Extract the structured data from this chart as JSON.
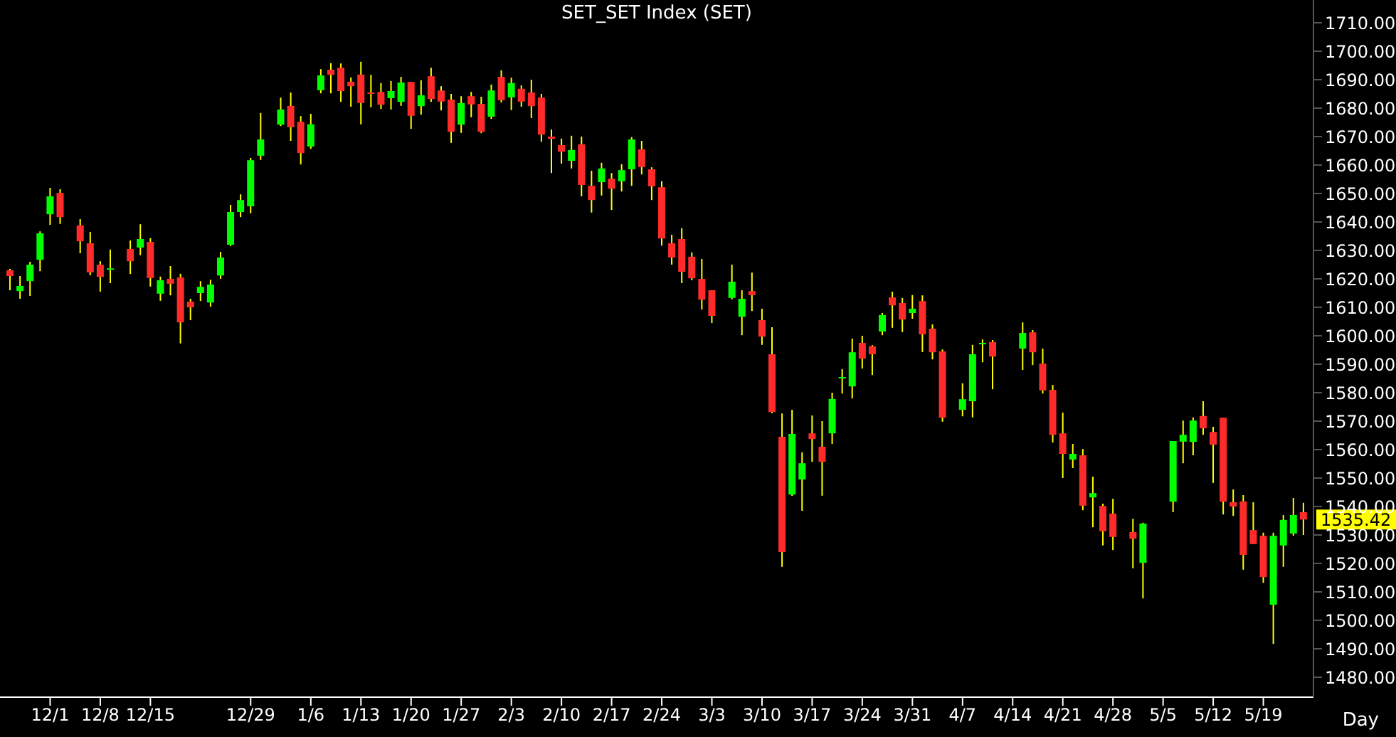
{
  "chart_data": {
    "type": "candlestick",
    "title": "SET_SET Index (SET)",
    "xlabel": "Day",
    "categories": [
      null,
      null,
      null,
      null,
      "12/1",
      null,
      null,
      null,
      null,
      "12/8",
      null,
      null,
      null,
      null,
      "12/15",
      null,
      null,
      null,
      null,
      null,
      null,
      null,
      null,
      null,
      "12/29",
      null,
      null,
      null,
      null,
      null,
      "1/6",
      null,
      null,
      null,
      null,
      "1/13",
      null,
      null,
      null,
      null,
      "1/20",
      null,
      null,
      null,
      null,
      "1/27",
      null,
      null,
      null,
      null,
      "2/3",
      null,
      null,
      null,
      null,
      "2/10",
      null,
      null,
      null,
      null,
      "2/17",
      null,
      null,
      null,
      null,
      "2/24",
      null,
      null,
      null,
      null,
      "3/3",
      null,
      null,
      null,
      null,
      "3/10",
      null,
      null,
      null,
      null,
      "3/17",
      null,
      null,
      null,
      null,
      "3/24",
      null,
      null,
      null,
      null,
      "3/31",
      null,
      null,
      null,
      null,
      "4/7",
      null,
      null,
      null,
      null,
      "4/14",
      null,
      null,
      null,
      null,
      "4/21",
      null,
      null,
      null,
      null,
      "4/28",
      null,
      null,
      null,
      null,
      "5/5",
      null,
      null,
      null,
      null,
      "5/12",
      null,
      null,
      null,
      null,
      "5/19",
      null,
      null,
      null,
      null
    ],
    "ohlc": [
      [
        1623,
        1623.5,
        1616,
        1621
      ],
      [
        1615.7,
        1621,
        1613,
        1617.5
      ],
      [
        1619.2,
        1626,
        1614,
        1625
      ],
      [
        1626.7,
        1636.7,
        1622.7,
        1636
      ],
      [
        1642.7,
        1652,
        1639,
        1649
      ],
      [
        1650.2,
        1651.5,
        1639.3,
        1641.7
      ],
      null,
      [
        1638.8,
        1641,
        1629,
        1633.2
      ],
      [
        1632.5,
        1636.5,
        1621.3,
        1622.3
      ],
      [
        1625,
        1626.2,
        1615.5,
        1620.7
      ],
      [
        1623.3,
        1630.3,
        1618.5,
        1623.7
      ],
      null,
      [
        1630.5,
        1633.5,
        1621.7,
        1626.2
      ],
      [
        1631,
        1639.2,
        1628.3,
        1634
      ],
      [
        1633,
        1634.3,
        1617.3,
        1620.3
      ],
      [
        1614.8,
        1620.8,
        1612.3,
        1619.5
      ],
      [
        1620,
        1624.5,
        1614.2,
        1618.3
      ],
      [
        1620.5,
        1621.8,
        1597.3,
        1604.7
      ],
      [
        1612,
        1613,
        1605.5,
        1610
      ],
      [
        1615,
        1619.2,
        1612.2,
        1617.2
      ],
      [
        1611.7,
        1619.7,
        1610.2,
        1618
      ],
      [
        1621.2,
        1629.5,
        1620,
        1627.5
      ],
      [
        1632,
        1646,
        1631.5,
        1643.5
      ],
      [
        1643.5,
        1649.7,
        1641.7,
        1647.7
      ],
      [
        1645.5,
        1662.5,
        1643,
        1661.7
      ],
      [
        1663.3,
        1678.3,
        1661.8,
        1669
      ],
      null,
      [
        1674.2,
        1683.7,
        1673.7,
        1679.5
      ],
      [
        1680.8,
        1685.5,
        1668.5,
        1673.3
      ],
      [
        1675.2,
        1677.2,
        1660.2,
        1664.2
      ],
      [
        1666.5,
        1678,
        1665.7,
        1674.3
      ],
      [
        1686.3,
        1693.7,
        1685.2,
        1691.5
      ],
      [
        1693.5,
        1695.8,
        1685.2,
        1691.7
      ],
      [
        1694.2,
        1695.7,
        1682.2,
        1686
      ],
      [
        1689.3,
        1690.8,
        1680.5,
        1687.7
      ],
      [
        1691.8,
        1696.3,
        1674.3,
        1681.8
      ],
      [
        1685.5,
        1691.7,
        1680.3,
        1685.2
      ],
      [
        1685.7,
        1688.8,
        1679.7,
        1681.2
      ],
      [
        1683.5,
        1689.5,
        1679.5,
        1686
      ],
      [
        1682.2,
        1691,
        1680.8,
        1689
      ],
      [
        1689.2,
        1689.2,
        1672.7,
        1677.3
      ],
      [
        1680.7,
        1689.8,
        1677.7,
        1684.5
      ],
      [
        1691.2,
        1694.2,
        1682.2,
        1683.2
      ],
      [
        1686.2,
        1687.7,
        1679.2,
        1682.3
      ],
      [
        1683,
        1685,
        1667.8,
        1671.7
      ],
      [
        1674.2,
        1684.2,
        1671.3,
        1681.8
      ],
      [
        1684.2,
        1685.7,
        1676.8,
        1681.3
      ],
      [
        1681.5,
        1684,
        1671.2,
        1671.7
      ],
      [
        1677,
        1688.3,
        1676.2,
        1686.2
      ],
      [
        1691,
        1693.3,
        1682,
        1682.8
      ],
      [
        1683.8,
        1690.7,
        1679.3,
        1688.8
      ],
      [
        1686.8,
        1688,
        1680.5,
        1682.3
      ],
      [
        1685.5,
        1690,
        1676.5,
        1680.7
      ],
      [
        1683.7,
        1685,
        1668.2,
        1670.7
      ],
      [
        1670,
        1672.5,
        1657.2,
        1669.2
      ],
      [
        1667,
        1669.3,
        1660.5,
        1664.7
      ],
      [
        1661.5,
        1670.3,
        1658.8,
        1665.3
      ],
      [
        1667.3,
        1670,
        1649,
        1653
      ],
      [
        1652.7,
        1658,
        1643.3,
        1647.7
      ],
      [
        1654,
        1660.8,
        1649.3,
        1658.8
      ],
      [
        1655.2,
        1657.2,
        1644.2,
        1651.7
      ],
      [
        1654.3,
        1660.3,
        1650.7,
        1658.2
      ],
      [
        1658.5,
        1669.8,
        1652.7,
        1669
      ],
      [
        1665.5,
        1668.5,
        1656.7,
        1659.3
      ],
      [
        1658.5,
        1659.2,
        1647.7,
        1652.5
      ],
      [
        1652.2,
        1654.3,
        1631.7,
        1634.2
      ],
      [
        1632.5,
        1635.5,
        1625,
        1627.5
      ],
      [
        1634,
        1637.8,
        1618.5,
        1622.5
      ],
      [
        1627.8,
        1629.3,
        1619.5,
        1620.2
      ],
      [
        1620,
        1627,
        1609.2,
        1612.7
      ],
      [
        1616,
        1616,
        1604.5,
        1607
      ],
      null,
      [
        1613.3,
        1625,
        1612.8,
        1619
      ],
      [
        1606.7,
        1616,
        1600.2,
        1613
      ],
      [
        1615.7,
        1622.2,
        1608.7,
        1614.3
      ],
      [
        1605.5,
        1609.5,
        1596.8,
        1599.7
      ],
      [
        1593.5,
        1603,
        1572.8,
        1573.2
      ],
      [
        1564.5,
        1572.7,
        1518.8,
        1524
      ],
      [
        1544.2,
        1574,
        1543.7,
        1565.5
      ],
      [
        1549.5,
        1559,
        1538.5,
        1555.2
      ],
      [
        1565.7,
        1572,
        1555.7,
        1563.7
      ],
      [
        1561,
        1570,
        1543.8,
        1555.7
      ],
      [
        1565.7,
        1580,
        1562,
        1577.8
      ],
      [
        1585.2,
        1588.3,
        1579.7,
        1585.5
      ],
      [
        1582.2,
        1599,
        1578,
        1594.2
      ],
      [
        1597.5,
        1600,
        1588.5,
        1592
      ],
      [
        1596.3,
        1596.7,
        1586.2,
        1593.5
      ],
      [
        1601.5,
        1608,
        1600.2,
        1607.3
      ],
      [
        1613.5,
        1615.5,
        1602.8,
        1610.7
      ],
      [
        1611.5,
        1613.3,
        1601.3,
        1605.7
      ],
      [
        1608,
        1614.3,
        1606,
        1609.5
      ],
      [
        1612.2,
        1614.2,
        1594.3,
        1600.5
      ],
      [
        1602.5,
        1604,
        1591.7,
        1594.2
      ],
      [
        1594.5,
        1595.2,
        1569.8,
        1571.2
      ],
      null,
      [
        1574,
        1583.3,
        1571.7,
        1577.7
      ],
      [
        1577,
        1596.8,
        1571.3,
        1593.5
      ],
      [
        1597.2,
        1598.7,
        1590.7,
        1597.5
      ],
      [
        1597.8,
        1598.5,
        1581.2,
        1592.7
      ],
      null,
      null,
      [
        1595.5,
        1604.7,
        1588,
        1601
      ],
      [
        1601.2,
        1602,
        1589.7,
        1594.2
      ],
      [
        1590.2,
        1595.5,
        1579.7,
        1580.8
      ],
      [
        1581,
        1582.7,
        1562.5,
        1565.2
      ],
      [
        1565.7,
        1573,
        1550,
        1558.5
      ],
      [
        1556.5,
        1562,
        1553.5,
        1558.5
      ],
      [
        1558,
        1560.2,
        1538.7,
        1540.3
      ],
      [
        1543.2,
        1550.5,
        1532.7,
        1544.7
      ],
      [
        1540.2,
        1541,
        1526.3,
        1531.3
      ],
      [
        1537.5,
        1542.7,
        1524.7,
        1529.3
      ],
      null,
      [
        1531,
        1535.7,
        1518.3,
        1528.7
      ],
      [
        1520.2,
        1534.3,
        1507.7,
        1534
      ],
      null,
      null,
      [
        1541.7,
        1563,
        1538,
        1563
      ],
      [
        1562.8,
        1570.2,
        1555.2,
        1565.2
      ],
      [
        1562.7,
        1571.3,
        1558,
        1570.2
      ],
      [
        1571.8,
        1577,
        1565.2,
        1567.5
      ],
      [
        1566.2,
        1568,
        1548.3,
        1561.7
      ],
      [
        1571.2,
        1571.2,
        1537.2,
        1541.7
      ],
      [
        1541.5,
        1546,
        1536.7,
        1540
      ],
      [
        1541.8,
        1544,
        1517.8,
        1523
      ],
      [
        1531.7,
        1541.5,
        1526.8,
        1526.8
      ],
      [
        1529.7,
        1530.8,
        1513.2,
        1515.2
      ],
      [
        1505.5,
        1530.8,
        1491.7,
        1529.7
      ],
      [
        1526.3,
        1537,
        1518.8,
        1535.3
      ],
      [
        1530.5,
        1543,
        1529.7,
        1537
      ],
      [
        1538,
        1541.3,
        1530,
        1535.42
      ]
    ],
    "colors": [
      "#ff2a2a",
      "#00ff00",
      "#00ff00",
      "#00ff00",
      "#00ff00",
      "#ff2a2a",
      null,
      "#ff2a2a",
      "#ff2a2a",
      "#ff2a2a",
      "#00ff00",
      null,
      "#ff2a2a",
      "#00ff00",
      "#ff2a2a",
      "#00ff00",
      "#ff2a2a",
      "#ff2a2a",
      "#ff2a2a",
      "#00ff00",
      "#00ff00",
      "#00ff00",
      "#00ff00",
      "#00ff00",
      "#00ff00",
      "#00ff00",
      null,
      "#00ff00",
      "#ff2a2a",
      "#ff2a2a",
      "#00ff00",
      "#00ff00",
      "#ff2a2a",
      "#ff2a2a",
      "#ff2a2a",
      "#ff2a2a",
      "#ff2a2a",
      "#ff2a2a",
      "#00ff00",
      "#00ff00",
      "#ff2a2a",
      "#00ff00",
      "#ff2a2a",
      "#ff2a2a",
      "#ff2a2a",
      "#00ff00",
      "#ff2a2a",
      "#ff2a2a",
      "#00ff00",
      "#ff2a2a",
      "#00ff00",
      "#ff2a2a",
      "#ff2a2a",
      "#ff2a2a",
      "#ff2a2a",
      "#ff2a2a",
      "#00ff00",
      "#ff2a2a",
      "#ff2a2a",
      "#00ff00",
      "#ff2a2a",
      "#00ff00",
      "#00ff00",
      "#ff2a2a",
      "#ff2a2a",
      "#ff2a2a",
      "#ff2a2a",
      "#ff2a2a",
      "#ff2a2a",
      "#ff2a2a",
      "#ff2a2a",
      null,
      "#00ff00",
      "#00ff00",
      "#ff2a2a",
      "#ff2a2a",
      "#ff2a2a",
      "#ff2a2a",
      "#00ff00",
      "#00ff00",
      "#ff2a2a",
      "#ff2a2a",
      "#00ff00",
      "#00ff00",
      "#00ff00",
      "#ff2a2a",
      "#ff2a2a",
      "#00ff00",
      "#ff2a2a",
      "#ff2a2a",
      "#00ff00",
      "#ff2a2a",
      "#ff2a2a",
      "#ff2a2a",
      null,
      "#00ff00",
      "#00ff00",
      "#00ff00",
      "#ff2a2a",
      null,
      null,
      "#00ff00",
      "#ff2a2a",
      "#ff2a2a",
      "#ff2a2a",
      "#ff2a2a",
      "#00ff00",
      "#ff2a2a",
      "#00ff00",
      "#ff2a2a",
      "#ff2a2a",
      null,
      "#ff2a2a",
      "#00ff00",
      null,
      null,
      "#00ff00",
      "#00ff00",
      "#00ff00",
      "#ff2a2a",
      "#ff2a2a",
      "#ff2a2a",
      "#ff2a2a",
      "#ff2a2a",
      "#ff2a2a",
      "#ff2a2a",
      "#00ff00",
      "#00ff00",
      "#00ff00",
      "#ff2a2a"
    ],
    "ylim": [
      1473,
      1718
    ],
    "yticks": [
      {
        "value": 1480,
        "label": "1480.00"
      },
      {
        "value": 1490,
        "label": "1490.00"
      },
      {
        "value": 1500,
        "label": "1500.00"
      },
      {
        "value": 1510,
        "label": "1510.00"
      },
      {
        "value": 1520,
        "label": "1520.00"
      },
      {
        "value": 1530,
        "label": "1530.00"
      },
      {
        "value": 1540,
        "label": "1540.00"
      },
      {
        "value": 1550,
        "label": "1550.00"
      },
      {
        "value": 1560,
        "label": "1560.00"
      },
      {
        "value": 1570,
        "label": "1570.00"
      },
      {
        "value": 1580,
        "label": "1580.00"
      },
      {
        "value": 1590,
        "label": "1590.00"
      },
      {
        "value": 1600,
        "label": "1600.00"
      },
      {
        "value": 1610,
        "label": "1610.00"
      },
      {
        "value": 1620,
        "label": "1620.00"
      },
      {
        "value": 1630,
        "label": "1630.00"
      },
      {
        "value": 1640,
        "label": "1640.00"
      },
      {
        "value": 1650,
        "label": "1650.00"
      },
      {
        "value": 1660,
        "label": "1660.00"
      },
      {
        "value": 1670,
        "label": "1670.00"
      },
      {
        "value": 1680,
        "label": "1680.00"
      },
      {
        "value": 1690,
        "label": "1690.00"
      },
      {
        "value": 1700,
        "label": "1700.00"
      },
      {
        "value": 1710,
        "label": "1710.00"
      }
    ],
    "annotations": [
      "1535.42"
    ]
  }
}
